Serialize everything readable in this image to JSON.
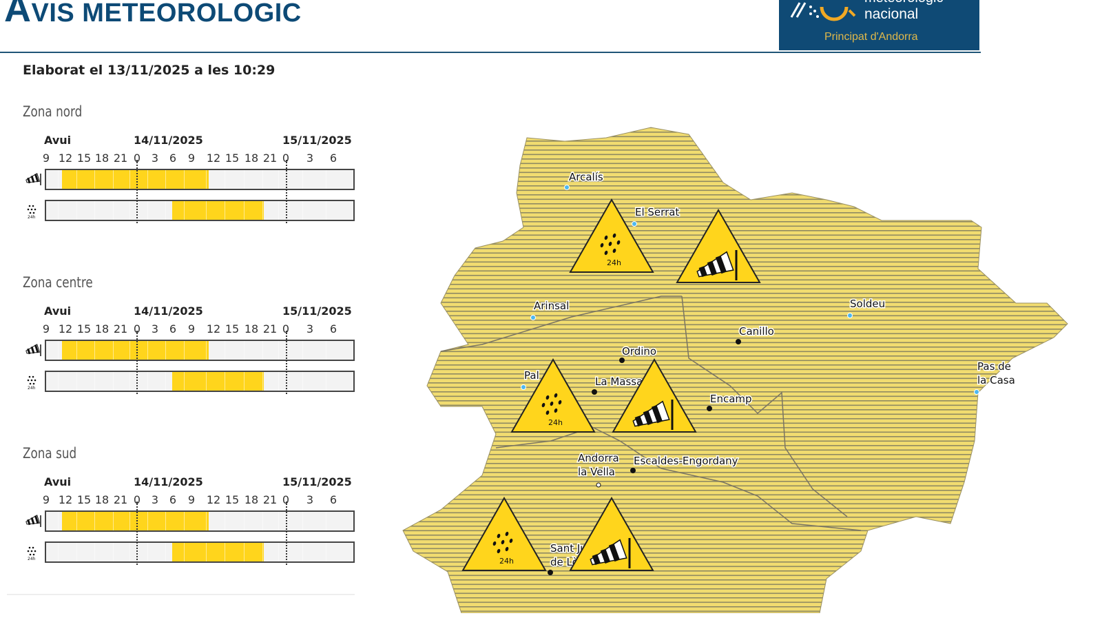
{
  "header": {
    "title_first": "A",
    "title_rest": "VIS METEOROLOGIC",
    "logo_line1": "meteorològic",
    "logo_line2": "nacional",
    "logo_line3": "Principat d'Andorra"
  },
  "elaborated": "Elaborat el 13/11/2025 a les 10:29",
  "timeline": {
    "days": [
      "Avui",
      "14/11/2025",
      "15/11/2025"
    ],
    "ticks": [
      "9",
      "12",
      "15",
      "18",
      "21",
      "0",
      "3",
      "6",
      "9",
      "12",
      "15",
      "18",
      "21",
      "0",
      "3",
      "6"
    ]
  },
  "colors": {
    "warning_yellow": "#ffd51c",
    "title_blue": "#0d4a76"
  },
  "zones": [
    {
      "name": "Zona nord",
      "rows": [
        {
          "icon": "windsock-icon",
          "from_hour": 3,
          "to_hour": 27
        },
        {
          "icon": "rain-24h-icon",
          "from_hour": 21,
          "to_hour": 36
        }
      ]
    },
    {
      "name": "Zona centre",
      "rows": [
        {
          "icon": "windsock-icon",
          "from_hour": 3,
          "to_hour": 27
        },
        {
          "icon": "rain-24h-icon",
          "from_hour": 21,
          "to_hour": 36
        }
      ]
    },
    {
      "name": "Zona sud",
      "rows": [
        {
          "icon": "windsock-icon",
          "from_hour": 3,
          "to_hour": 27
        },
        {
          "icon": "rain-24h-icon",
          "from_hour": 21,
          "to_hour": 36
        }
      ]
    }
  ],
  "map": {
    "towns": [
      {
        "name": "Arcalís",
        "type": "ski"
      },
      {
        "name": "El Serrat",
        "type": "ski"
      },
      {
        "name": "Arinsal",
        "type": "ski"
      },
      {
        "name": "Soldeu",
        "type": "ski"
      },
      {
        "name": "Canillo",
        "type": "town"
      },
      {
        "name": "Ordino",
        "type": "town"
      },
      {
        "name": "Pal",
        "type": "ski"
      },
      {
        "name": "La Massana",
        "type": "town"
      },
      {
        "name": "Encamp",
        "type": "town"
      },
      {
        "name": "Pas de",
        "name2": "la Casa",
        "type": "ski"
      },
      {
        "name": "Andorra",
        "name2": "la Vella",
        "type": "capital"
      },
      {
        "name": "Escaldes-Engordany",
        "type": "town"
      },
      {
        "name": "Sant Julià",
        "name2": "de Lòria",
        "type": "town"
      }
    ],
    "warnings": [
      {
        "zone": "Zona nord",
        "type": "rain",
        "label": "24h"
      },
      {
        "zone": "Zona nord",
        "type": "wind"
      },
      {
        "zone": "Zona centre",
        "type": "rain",
        "label": "24h"
      },
      {
        "zone": "Zona centre",
        "type": "wind"
      },
      {
        "zone": "Zona sud",
        "type": "rain",
        "label": "24h"
      },
      {
        "zone": "Zona sud",
        "type": "wind"
      }
    ]
  }
}
